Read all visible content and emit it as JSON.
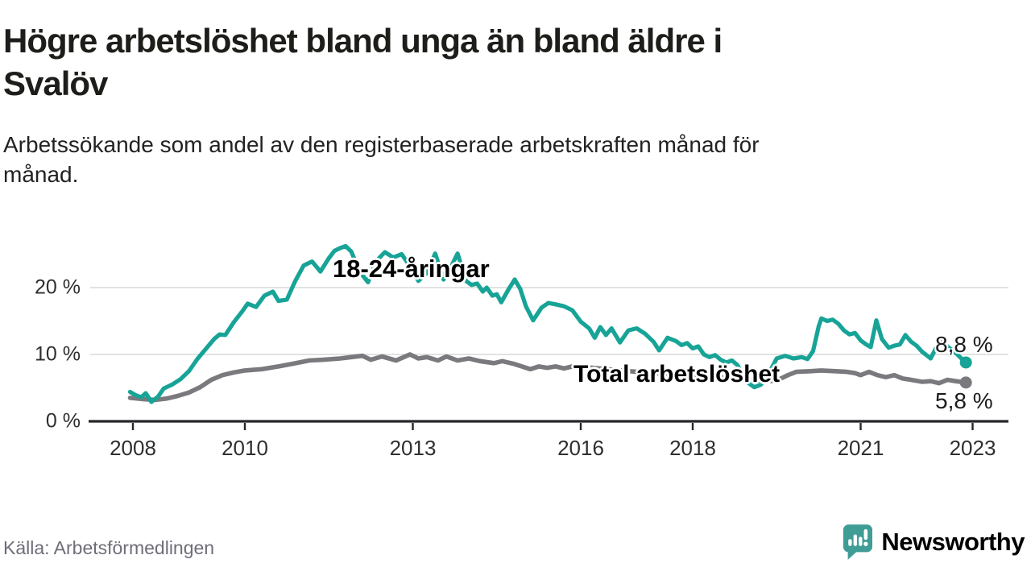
{
  "header": {
    "title_lines": [
      "Högre arbetslöshet bland unga än bland äldre i",
      "Svalöv"
    ],
    "subtitle_lines": [
      "Arbetssökande som andel av den registerbaserade arbetskraften månad för",
      "månad."
    ]
  },
  "footer": {
    "source": "Källa: Arbetsförmedlingen",
    "brand": "Newsworthy",
    "logo_icon": "newsworthy-speech-bubble-chart-icon"
  },
  "colors": {
    "youth_line": "#17a497",
    "total_line": "#7a7a7e",
    "value_text": "#1b1b1b",
    "axis": "#26262b",
    "grid": "#d9d9d9",
    "tick_text": "#2f2f2f",
    "brand_teal": "#3f9d96",
    "source_text": "#6e6e78"
  },
  "chart_data": {
    "type": "line",
    "title": "Högre arbetslöshet bland unga än bland äldre i Svalöv",
    "subtitle": "Arbetssökande som andel av den registerbaserade arbetskraften månad för månad.",
    "x_axis": {
      "ticks": [
        2008,
        2010,
        2013,
        2016,
        2018,
        2021,
        2023
      ],
      "range": [
        2007.2,
        2023.6
      ],
      "grid": false
    },
    "y_axis": {
      "ticks": [
        0,
        10,
        20
      ],
      "tick_labels": [
        "0 %",
        "10 %",
        "20 %"
      ],
      "range": [
        0,
        27
      ],
      "unit": "%",
      "grid": true
    },
    "legend_position": "inline-labels",
    "series": [
      {
        "name": "Total arbetslöshet",
        "color": "#7a7a7e",
        "end_label": "5,8 %",
        "end_value": 5.8,
        "points": [
          [
            2007.95,
            3.5
          ],
          [
            2008.2,
            3.3
          ],
          [
            2008.4,
            3.2
          ],
          [
            2008.6,
            3.4
          ],
          [
            2008.8,
            3.8
          ],
          [
            2009.0,
            4.3
          ],
          [
            2009.2,
            5.1
          ],
          [
            2009.4,
            6.2
          ],
          [
            2009.6,
            6.9
          ],
          [
            2009.8,
            7.3
          ],
          [
            2010.0,
            7.6
          ],
          [
            2010.3,
            7.8
          ],
          [
            2010.6,
            8.2
          ],
          [
            2010.85,
            8.6
          ],
          [
            2011.15,
            9.1
          ],
          [
            2011.4,
            9.2
          ],
          [
            2011.7,
            9.4
          ],
          [
            2011.9,
            9.6
          ],
          [
            2012.1,
            9.8
          ],
          [
            2012.25,
            9.2
          ],
          [
            2012.45,
            9.7
          ],
          [
            2012.7,
            9.1
          ],
          [
            2012.95,
            10.0
          ],
          [
            2013.1,
            9.4
          ],
          [
            2013.25,
            9.6
          ],
          [
            2013.45,
            9.1
          ],
          [
            2013.6,
            9.7
          ],
          [
            2013.8,
            9.1
          ],
          [
            2014.0,
            9.4
          ],
          [
            2014.2,
            9.0
          ],
          [
            2014.45,
            8.7
          ],
          [
            2014.6,
            9.0
          ],
          [
            2014.8,
            8.6
          ],
          [
            2014.95,
            8.2
          ],
          [
            2015.1,
            7.8
          ],
          [
            2015.25,
            8.2
          ],
          [
            2015.4,
            8.0
          ],
          [
            2015.55,
            8.2
          ],
          [
            2015.7,
            7.9
          ],
          [
            2015.85,
            8.2
          ],
          [
            2016.2,
            8.0
          ],
          [
            2016.6,
            7.7
          ],
          [
            2017.0,
            7.4
          ],
          [
            2017.5,
            7.1
          ],
          [
            2018.0,
            6.9
          ],
          [
            2018.5,
            6.6
          ],
          [
            2019.0,
            6.3
          ],
          [
            2019.3,
            6.0
          ],
          [
            2019.5,
            6.1
          ],
          [
            2019.7,
            6.9
          ],
          [
            2019.85,
            7.4
          ],
          [
            2020.1,
            7.5
          ],
          [
            2020.3,
            7.6
          ],
          [
            2020.55,
            7.5
          ],
          [
            2020.75,
            7.4
          ],
          [
            2020.9,
            7.2
          ],
          [
            2021.0,
            6.9
          ],
          [
            2021.15,
            7.4
          ],
          [
            2021.3,
            6.9
          ],
          [
            2021.45,
            6.6
          ],
          [
            2021.6,
            6.9
          ],
          [
            2021.75,
            6.4
          ],
          [
            2021.9,
            6.2
          ],
          [
            2022.1,
            5.9
          ],
          [
            2022.25,
            6.0
          ],
          [
            2022.4,
            5.7
          ],
          [
            2022.55,
            6.2
          ],
          [
            2022.7,
            6.0
          ],
          [
            2022.88,
            5.8
          ]
        ]
      },
      {
        "name": "18-24-åringar",
        "color": "#17a497",
        "end_label": "8,8 %",
        "end_value": 8.8,
        "points": [
          [
            2007.95,
            4.4
          ],
          [
            2008.05,
            3.9
          ],
          [
            2008.15,
            3.6
          ],
          [
            2008.23,
            4.2
          ],
          [
            2008.33,
            2.9
          ],
          [
            2008.45,
            3.7
          ],
          [
            2008.55,
            4.9
          ],
          [
            2008.7,
            5.5
          ],
          [
            2008.85,
            6.3
          ],
          [
            2009.0,
            7.5
          ],
          [
            2009.15,
            9.3
          ],
          [
            2009.3,
            10.8
          ],
          [
            2009.45,
            12.3
          ],
          [
            2009.55,
            13.0
          ],
          [
            2009.65,
            12.9
          ],
          [
            2009.8,
            14.8
          ],
          [
            2009.95,
            16.4
          ],
          [
            2010.05,
            17.6
          ],
          [
            2010.2,
            17.1
          ],
          [
            2010.35,
            18.8
          ],
          [
            2010.5,
            19.4
          ],
          [
            2010.6,
            18.0
          ],
          [
            2010.75,
            18.2
          ],
          [
            2010.9,
            21.0
          ],
          [
            2011.05,
            23.3
          ],
          [
            2011.2,
            23.9
          ],
          [
            2011.35,
            22.4
          ],
          [
            2011.5,
            24.4
          ],
          [
            2011.6,
            25.5
          ],
          [
            2011.7,
            25.9
          ],
          [
            2011.8,
            26.2
          ],
          [
            2011.9,
            25.4
          ],
          [
            2012.05,
            22.4
          ],
          [
            2012.2,
            20.8
          ],
          [
            2012.35,
            24.0
          ],
          [
            2012.5,
            25.3
          ],
          [
            2012.65,
            24.5
          ],
          [
            2012.8,
            25.0
          ],
          [
            2012.95,
            23.2
          ],
          [
            2013.1,
            21.0
          ],
          [
            2013.25,
            22.2
          ],
          [
            2013.4,
            25.1
          ],
          [
            2013.55,
            21.2
          ],
          [
            2013.7,
            23.4
          ],
          [
            2013.8,
            25.1
          ],
          [
            2013.95,
            21.0
          ],
          [
            2014.05,
            20.4
          ],
          [
            2014.15,
            20.6
          ],
          [
            2014.25,
            19.4
          ],
          [
            2014.32,
            20.0
          ],
          [
            2014.42,
            18.8
          ],
          [
            2014.5,
            19.0
          ],
          [
            2014.58,
            17.8
          ],
          [
            2014.7,
            19.6
          ],
          [
            2014.82,
            21.2
          ],
          [
            2014.92,
            19.8
          ],
          [
            2015.02,
            17.2
          ],
          [
            2015.15,
            15.1
          ],
          [
            2015.3,
            17.0
          ],
          [
            2015.42,
            17.7
          ],
          [
            2015.55,
            17.5
          ],
          [
            2015.7,
            17.2
          ],
          [
            2015.85,
            16.6
          ],
          [
            2016.0,
            14.9
          ],
          [
            2016.15,
            13.9
          ],
          [
            2016.25,
            12.5
          ],
          [
            2016.35,
            14.1
          ],
          [
            2016.45,
            12.9
          ],
          [
            2016.55,
            13.9
          ],
          [
            2016.7,
            11.8
          ],
          [
            2016.85,
            13.6
          ],
          [
            2017.0,
            13.9
          ],
          [
            2017.15,
            13.1
          ],
          [
            2017.3,
            11.9
          ],
          [
            2017.4,
            10.6
          ],
          [
            2017.55,
            12.5
          ],
          [
            2017.7,
            12.0
          ],
          [
            2017.8,
            11.4
          ],
          [
            2017.9,
            11.7
          ],
          [
            2018.0,
            10.9
          ],
          [
            2018.1,
            11.2
          ],
          [
            2018.2,
            10.0
          ],
          [
            2018.3,
            9.6
          ],
          [
            2018.4,
            9.9
          ],
          [
            2018.5,
            9.2
          ],
          [
            2018.6,
            8.8
          ],
          [
            2018.7,
            9.1
          ],
          [
            2018.8,
            8.4
          ],
          [
            2018.95,
            6.0
          ],
          [
            2019.1,
            5.1
          ],
          [
            2019.22,
            5.5
          ],
          [
            2019.35,
            7.0
          ],
          [
            2019.5,
            9.4
          ],
          [
            2019.65,
            9.8
          ],
          [
            2019.8,
            9.4
          ],
          [
            2019.95,
            9.6
          ],
          [
            2020.05,
            9.3
          ],
          [
            2020.15,
            10.5
          ],
          [
            2020.25,
            14.2
          ],
          [
            2020.3,
            15.4
          ],
          [
            2020.4,
            15.0
          ],
          [
            2020.5,
            15.2
          ],
          [
            2020.6,
            14.6
          ],
          [
            2020.7,
            13.6
          ],
          [
            2020.8,
            13.0
          ],
          [
            2020.9,
            13.2
          ],
          [
            2021.0,
            12.1
          ],
          [
            2021.1,
            11.5
          ],
          [
            2021.18,
            11.1
          ],
          [
            2021.28,
            15.1
          ],
          [
            2021.38,
            12.3
          ],
          [
            2021.5,
            11.0
          ],
          [
            2021.6,
            11.3
          ],
          [
            2021.7,
            11.5
          ],
          [
            2021.8,
            12.9
          ],
          [
            2021.9,
            11.9
          ],
          [
            2022.0,
            11.3
          ],
          [
            2022.1,
            10.4
          ],
          [
            2022.25,
            9.4
          ],
          [
            2022.35,
            11.0
          ],
          [
            2022.42,
            12.0
          ],
          [
            2022.55,
            11.2
          ],
          [
            2022.7,
            10.2
          ],
          [
            2022.8,
            9.4
          ],
          [
            2022.88,
            8.8
          ]
        ]
      }
    ]
  }
}
